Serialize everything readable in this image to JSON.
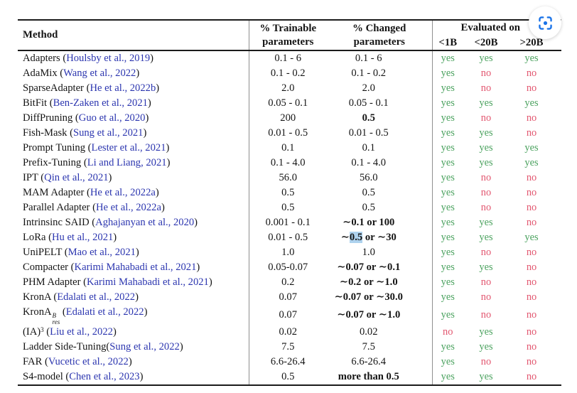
{
  "lens_button": {
    "label": "screenshot-lens-button",
    "color": "#1a73e8"
  },
  "colors": {
    "citation_blue": "#2b35af",
    "yes_green": "#4ba25f",
    "no_red": "#e2566f",
    "rule_black": "#1b1b1b",
    "divider_gray": "#8f8f8f",
    "highlight_blue": "#aed2ee"
  },
  "table": {
    "header": {
      "method": "Method",
      "trainable": [
        "% Trainable",
        "parameters"
      ],
      "changed": [
        "% Changed",
        "parameters"
      ],
      "evaluated_on": "Evaluated on",
      "eval_cols": [
        "<1B",
        "<20B",
        ">20B"
      ]
    },
    "rows": [
      {
        "method": "Adapters",
        "cite": "Houlsby et al., 2019",
        "trainable": "0.1 - 6",
        "changed": "0.1 - 6",
        "eval": [
          "yes",
          "yes",
          "yes"
        ]
      },
      {
        "method": "AdaMix",
        "cite": "Wang et al., 2022",
        "trainable": "0.1 - 0.2",
        "changed": "0.1 - 0.2",
        "eval": [
          "yes",
          "no",
          "no"
        ]
      },
      {
        "method": "SparseAdapter",
        "cite": "He et al., 2022b",
        "trainable": "2.0",
        "changed": "2.0",
        "eval": [
          "yes",
          "no",
          "no"
        ]
      },
      {
        "method": "BitFit",
        "cite": "Ben-Zaken et al., 2021",
        "trainable": "0.05 - 0.1",
        "changed": "0.05 - 0.1",
        "eval": [
          "yes",
          "yes",
          "yes"
        ]
      },
      {
        "method": "DiffPruning",
        "cite": "Guo et al., 2020",
        "trainable": "200",
        "changed": "0.5",
        "changed_bold": true,
        "eval": [
          "yes",
          "no",
          "no"
        ]
      },
      {
        "method": "Fish-Mask",
        "cite": "Sung et al., 2021",
        "trainable": "0.01 - 0.5",
        "changed": "0.01 - 0.5",
        "eval": [
          "yes",
          "yes",
          "no"
        ]
      },
      {
        "method": "Prompt Tuning",
        "cite": "Lester et al., 2021",
        "trainable": "0.1",
        "changed": "0.1",
        "eval": [
          "yes",
          "yes",
          "yes"
        ]
      },
      {
        "method": "Prefix-Tuning",
        "cite": "Li and Liang, 2021",
        "trainable": "0.1 - 4.0",
        "changed": "0.1 - 4.0",
        "eval": [
          "yes",
          "yes",
          "yes"
        ]
      },
      {
        "method": "IPT",
        "cite": "Qin et al., 2021",
        "trainable": "56.0",
        "changed": "56.0",
        "eval": [
          "yes",
          "no",
          "no"
        ]
      },
      {
        "method": "MAM Adapter",
        "cite": "He et al., 2022a",
        "trainable": "0.5",
        "changed": "0.5",
        "eval": [
          "yes",
          "no",
          "no"
        ]
      },
      {
        "method": "Parallel Adapter",
        "cite": "He et al., 2022a",
        "trainable": "0.5",
        "changed": "0.5",
        "eval": [
          "yes",
          "no",
          "no"
        ]
      },
      {
        "method": "Intrinsinc SAID",
        "cite": "Aghajanyan et al., 2020",
        "trainable": "0.001 - 0.1",
        "changed": "∼0.1 or 100",
        "changed_bold": true,
        "eval": [
          "yes",
          "yes",
          "no"
        ]
      },
      {
        "method": "LoRa",
        "cite": "Hu et al., 2021",
        "trainable": "0.01 - 0.5",
        "changed": "∼0.5 or ∼30",
        "changed_bold": true,
        "changed_highlight": "0.5",
        "eval": [
          "yes",
          "yes",
          "yes"
        ]
      },
      {
        "method": "UniPELT",
        "cite": "Mao et al., 2021",
        "trainable": "1.0",
        "changed": "1.0",
        "eval": [
          "yes",
          "no",
          "no"
        ]
      },
      {
        "method": "Compacter",
        "cite": "Karimi Mahabadi et al., 2021",
        "trainable": "0.05-0.07",
        "changed": "∼0.07 or ∼0.1",
        "changed_bold": true,
        "eval": [
          "yes",
          "yes",
          "no"
        ]
      },
      {
        "method": "PHM Adapter",
        "cite": "Karimi Mahabadi et al., 2021",
        "trainable": "0.2",
        "changed": "∼0.2 or ∼1.0",
        "changed_bold": true,
        "eval": [
          "yes",
          "no",
          "no"
        ]
      },
      {
        "method": "KronA",
        "cite": "Edalati et al., 2022",
        "trainable": "0.07",
        "changed": "∼0.07 or ∼30.0",
        "changed_bold": true,
        "eval": [
          "yes",
          "no",
          "no"
        ]
      },
      {
        "method": "KronA",
        "sup": "B",
        "sub": "res",
        "cite": "Edalati et al., 2022",
        "trainable": "0.07",
        "changed": "∼0.07 or ∼1.0",
        "changed_bold": true,
        "eval": [
          "yes",
          "no",
          "no"
        ]
      },
      {
        "method": "(IA)",
        "sup": "3",
        "cite": "Liu et al., 2022",
        "trainable": "0.02",
        "changed": "0.02",
        "eval": [
          "no",
          "yes",
          "no"
        ]
      },
      {
        "method": "Ladder Side-Tuning",
        "tight_paren": true,
        "cite": "Sung et al., 2022",
        "trainable": "7.5",
        "changed": "7.5",
        "eval": [
          "yes",
          "yes",
          "no"
        ]
      },
      {
        "method": "FAR",
        "cite": "Vucetic et al., 2022",
        "trainable": "6.6-26.4",
        "changed": "6.6-26.4",
        "eval": [
          "yes",
          "no",
          "no"
        ]
      },
      {
        "method": "S4-model",
        "cite": "Chen et al., 2023",
        "trainable": "0.5",
        "changed": "more than 0.5",
        "changed_bold": true,
        "eval": [
          "yes",
          "yes",
          "no"
        ]
      }
    ]
  }
}
